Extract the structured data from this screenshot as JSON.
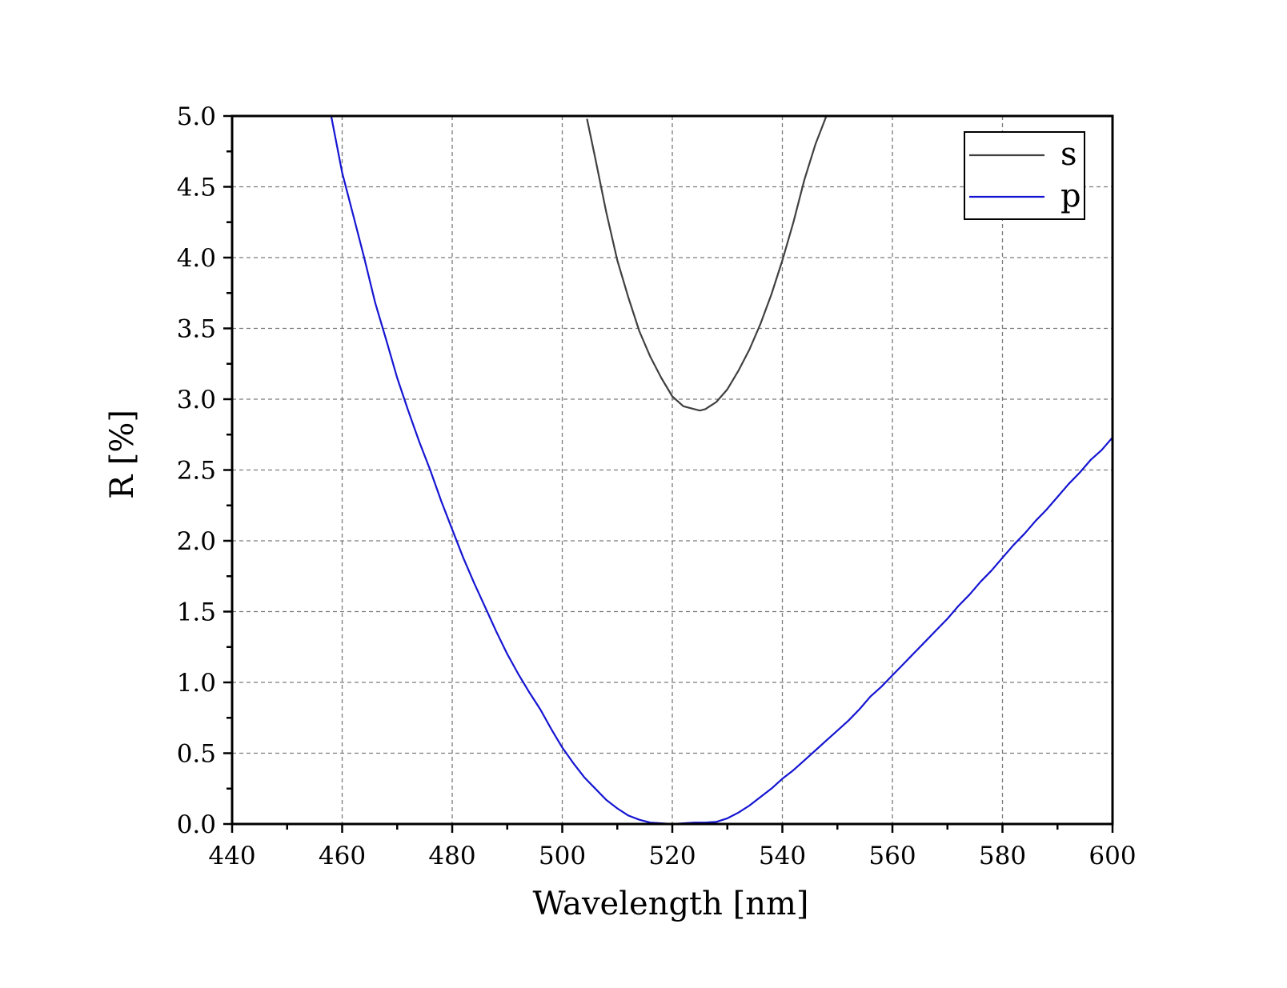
{
  "chart_data": {
    "type": "line",
    "xlabel": "Wavelength [nm]",
    "ylabel": "R [%]",
    "xlim": [
      440,
      600
    ],
    "ylim": [
      0.0,
      5.0
    ],
    "xticks": [
      440,
      460,
      480,
      500,
      520,
      540,
      560,
      580,
      600
    ],
    "xtick_labels": [
      "440",
      "460",
      "480",
      "500",
      "520",
      "540",
      "560",
      "580",
      "600"
    ],
    "yticks": [
      0.0,
      0.5,
      1.0,
      1.5,
      2.0,
      2.5,
      3.0,
      3.5,
      4.0,
      4.5,
      5.0
    ],
    "ytick_labels": [
      "0.0",
      "0.5",
      "1.0",
      "1.5",
      "2.0",
      "2.5",
      "3.0",
      "3.5",
      "4.0",
      "4.5",
      "5.0"
    ],
    "grid": true,
    "legend_position": "top-right",
    "series": [
      {
        "name": "s",
        "color": "#404040",
        "x": [
          504.5,
          506,
          508,
          510,
          512,
          514,
          516,
          518,
          520,
          522,
          524,
          525,
          526,
          528,
          530,
          532,
          534,
          536,
          538,
          540,
          542,
          544,
          546,
          548
        ],
        "y": [
          4.98,
          4.7,
          4.32,
          3.98,
          3.72,
          3.48,
          3.3,
          3.15,
          3.02,
          2.95,
          2.93,
          2.92,
          2.93,
          2.98,
          3.07,
          3.2,
          3.35,
          3.53,
          3.74,
          3.98,
          4.25,
          4.55,
          4.8,
          5.0
        ]
      },
      {
        "name": "p",
        "color": "#1414d2",
        "x": [
          458,
          460,
          462,
          464,
          466,
          468,
          470,
          472,
          474,
          476,
          478,
          480,
          482,
          484,
          486,
          488,
          490,
          492,
          494,
          496,
          498,
          500,
          502,
          504,
          506,
          508,
          510,
          512,
          514,
          516,
          518,
          520,
          522,
          524,
          526,
          528,
          530,
          532,
          534,
          536,
          538,
          540,
          542,
          544,
          546,
          548,
          550,
          552,
          554,
          556,
          558,
          560,
          562,
          564,
          566,
          568,
          570,
          572,
          574,
          576,
          578,
          580,
          582,
          584,
          586,
          588,
          590,
          592,
          594,
          596,
          598,
          600
        ],
        "y": [
          5.0,
          4.6,
          4.3,
          4.0,
          3.68,
          3.42,
          3.15,
          2.92,
          2.7,
          2.5,
          2.28,
          2.08,
          1.88,
          1.7,
          1.53,
          1.36,
          1.2,
          1.06,
          0.93,
          0.81,
          0.67,
          0.54,
          0.43,
          0.33,
          0.25,
          0.17,
          0.11,
          0.06,
          0.03,
          0.01,
          0.005,
          0.0,
          0.005,
          0.01,
          0.01,
          0.015,
          0.04,
          0.08,
          0.13,
          0.19,
          0.25,
          0.32,
          0.38,
          0.45,
          0.52,
          0.59,
          0.66,
          0.73,
          0.81,
          0.9,
          0.97,
          1.05,
          1.13,
          1.21,
          1.29,
          1.37,
          1.45,
          1.54,
          1.62,
          1.71,
          1.79,
          1.88,
          1.97,
          2.05,
          2.14,
          2.22,
          2.31,
          2.4,
          2.48,
          2.57,
          2.64,
          2.73
        ]
      }
    ]
  }
}
